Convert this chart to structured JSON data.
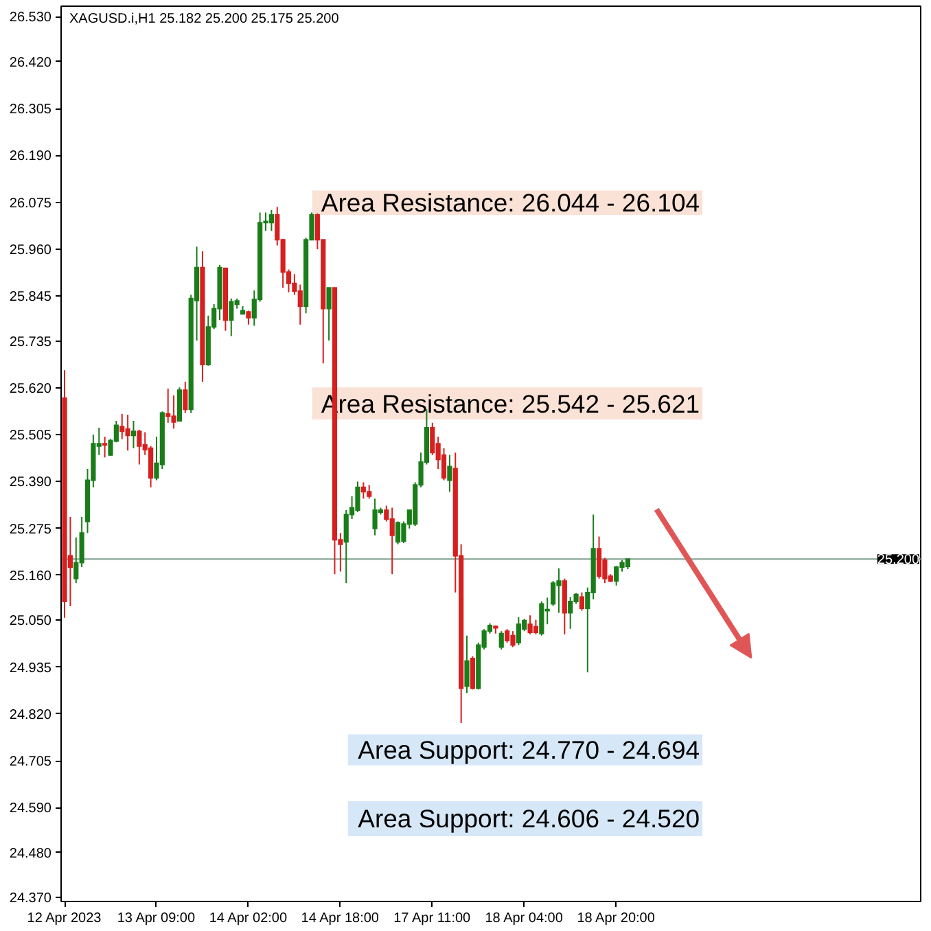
{
  "chart_data": {
    "type": "candlestick",
    "title": "XAGUSD.i,H1 25.182 25.200 25.175 25.200",
    "categories": [
      "12 Apr 2023",
      null,
      null,
      null,
      null,
      null,
      null,
      null,
      null,
      null,
      null,
      null,
      null,
      null,
      null,
      null,
      "13 Apr 09:00",
      null,
      null,
      null,
      null,
      null,
      null,
      null,
      null,
      null,
      null,
      null,
      null,
      null,
      null,
      null,
      "14 Apr 02:00",
      null,
      null,
      null,
      null,
      null,
      null,
      null,
      null,
      null,
      null,
      null,
      null,
      null,
      null,
      null,
      "14 Apr 18:00",
      null,
      null,
      null,
      null,
      null,
      null,
      null,
      null,
      null,
      null,
      null,
      null,
      null,
      null,
      null,
      "17 Apr 11:00",
      null,
      null,
      null,
      null,
      null,
      null,
      null,
      null,
      null,
      null,
      null,
      null,
      null,
      null,
      null,
      "18 Apr 04:00",
      null,
      null,
      null,
      null,
      null,
      null,
      null,
      null,
      null,
      null,
      null,
      null,
      null,
      null,
      null,
      "18 Apr 20:00",
      null,
      null
    ],
    "ohlc": [
      [
        25.595,
        25.663,
        25.056,
        25.096
      ],
      [
        25.208,
        25.303,
        25.084,
        25.18
      ],
      [
        25.152,
        25.253,
        25.141,
        25.191
      ],
      [
        25.191,
        25.303,
        25.18,
        25.264
      ],
      [
        25.292,
        25.421,
        25.264,
        25.393
      ],
      [
        25.393,
        25.505,
        25.376,
        25.483
      ],
      [
        25.477,
        25.522,
        25.455,
        25.483
      ],
      [
        25.483,
        25.5,
        25.449,
        25.48
      ],
      [
        25.455,
        25.494,
        25.453,
        25.491
      ],
      [
        25.489,
        25.539,
        25.486,
        25.528
      ],
      [
        25.525,
        25.556,
        25.494,
        25.513
      ],
      [
        25.519,
        25.554,
        25.466,
        25.503
      ],
      [
        25.503,
        25.539,
        25.472,
        25.513
      ],
      [
        25.513,
        25.517,
        25.432,
        25.477
      ],
      [
        25.48,
        25.511,
        25.455,
        25.468
      ],
      [
        25.472,
        25.477,
        25.376,
        25.399
      ],
      [
        25.399,
        25.5,
        25.393,
        25.435
      ],
      [
        25.432,
        25.562,
        25.421,
        25.558
      ],
      [
        25.556,
        25.618,
        25.534,
        25.55
      ],
      [
        25.55,
        25.601,
        25.52,
        25.536
      ],
      [
        25.539,
        25.621,
        25.537,
        25.614
      ],
      [
        25.614,
        25.635,
        25.558,
        25.567
      ],
      [
        25.567,
        25.848,
        25.558,
        25.839
      ],
      [
        25.834,
        25.966,
        25.736,
        25.915
      ],
      [
        25.915,
        25.955,
        25.635,
        25.677
      ],
      [
        25.677,
        25.797,
        25.674,
        25.769
      ],
      [
        25.769,
        25.825,
        25.764,
        25.814
      ],
      [
        25.814,
        25.921,
        25.786,
        25.915
      ],
      [
        25.913,
        25.915,
        25.76,
        25.786
      ],
      [
        25.786,
        25.839,
        25.747,
        25.831
      ],
      [
        25.825,
        25.839,
        25.814,
        25.833
      ],
      [
        25.801,
        25.82,
        25.801,
        25.809
      ],
      [
        25.806,
        25.809,
        25.775,
        25.792
      ],
      [
        25.792,
        25.859,
        25.772,
        25.837
      ],
      [
        25.837,
        26.05,
        25.831,
        26.025
      ],
      [
        26.025,
        26.05,
        26.005,
        26.028
      ],
      [
        26.025,
        26.056,
        26.005,
        26.044
      ],
      [
        26.044,
        26.064,
        25.969,
        25.983
      ],
      [
        25.983,
        25.985,
        25.865,
        25.904
      ],
      [
        25.904,
        25.91,
        25.854,
        25.876
      ],
      [
        25.876,
        25.899,
        25.848,
        25.857
      ],
      [
        25.857,
        25.873,
        25.775,
        25.82
      ],
      [
        25.82,
        25.988,
        25.803,
        25.983
      ],
      [
        25.983,
        26.05,
        25.983,
        26.044
      ],
      [
        26.044,
        26.048,
        25.96,
        25.983
      ],
      [
        25.983,
        25.983,
        25.68,
        25.814
      ],
      [
        25.814,
        25.865,
        25.736,
        25.865
      ],
      [
        25.865,
        25.865,
        25.163,
        25.247
      ],
      [
        25.247,
        25.264,
        25.169,
        25.236
      ],
      [
        25.242,
        25.32,
        25.141,
        25.309
      ],
      [
        25.309,
        25.354,
        25.298,
        25.326
      ],
      [
        25.32,
        25.39,
        25.315,
        25.376
      ],
      [
        25.376,
        25.388,
        25.348,
        25.365
      ],
      [
        25.365,
        25.382,
        25.348,
        25.354
      ],
      [
        25.275,
        25.348,
        25.258,
        25.32
      ],
      [
        25.315,
        25.326,
        25.309,
        25.32
      ],
      [
        25.32,
        25.331,
        25.292,
        25.298
      ],
      [
        25.298,
        25.326,
        25.163,
        25.258
      ],
      [
        25.242,
        25.292,
        25.236,
        25.289
      ],
      [
        25.244,
        25.292,
        25.239,
        25.286
      ],
      [
        25.286,
        25.32,
        25.275,
        25.32
      ],
      [
        25.286,
        25.388,
        25.281,
        25.382
      ],
      [
        25.382,
        25.461,
        25.376,
        25.438
      ],
      [
        25.438,
        25.567,
        25.432,
        25.522
      ],
      [
        25.522,
        25.534,
        25.455,
        25.461
      ],
      [
        25.483,
        25.5,
        25.421,
        25.444
      ],
      [
        25.455,
        25.472,
        25.393,
        25.399
      ],
      [
        25.393,
        25.455,
        25.365,
        25.427
      ],
      [
        25.422,
        25.461,
        25.118,
        25.208
      ],
      [
        25.208,
        25.236,
        24.798,
        24.883
      ],
      [
        24.888,
        25.012,
        24.871,
        24.95
      ],
      [
        24.956,
        24.961,
        24.88,
        24.883
      ],
      [
        24.883,
        24.995,
        24.88,
        24.989
      ],
      [
        24.984,
        25.028,
        24.978,
        25.023
      ],
      [
        25.023,
        25.042,
        25.017,
        25.037
      ],
      [
        25.035,
        25.037,
        25.017,
        25.031
      ],
      [
        24.984,
        25.023,
        24.978,
        25.017
      ],
      [
        25.023,
        25.028,
        24.995,
        25.0
      ],
      [
        25.012,
        25.023,
        24.984,
        24.989
      ],
      [
        24.995,
        25.057,
        24.989,
        25.04
      ],
      [
        25.028,
        25.053,
        25.023,
        25.049
      ],
      [
        25.04,
        25.062,
        25.015,
        25.02
      ],
      [
        25.034,
        25.051,
        25.015,
        25.02
      ],
      [
        25.017,
        25.096,
        25.012,
        25.09
      ],
      [
        25.073,
        25.105,
        25.04,
        25.076
      ],
      [
        25.09,
        25.146,
        25.085,
        25.141
      ],
      [
        25.135,
        25.177,
        25.068,
        25.146
      ],
      [
        25.146,
        25.152,
        25.015,
        25.068
      ],
      [
        25.068,
        25.107,
        25.029,
        25.096
      ],
      [
        25.096,
        25.116,
        25.09,
        25.113
      ],
      [
        25.107,
        25.118,
        25.073,
        25.079
      ],
      [
        25.079,
        25.13,
        24.922,
        25.118
      ],
      [
        25.118,
        25.309,
        25.101,
        25.225
      ],
      [
        25.225,
        25.255,
        25.152,
        25.158
      ],
      [
        25.197,
        25.203,
        25.141,
        25.152
      ],
      [
        25.158,
        25.163,
        25.143,
        25.146
      ],
      [
        25.146,
        25.183,
        25.135,
        25.18
      ],
      [
        25.18,
        25.197,
        25.169,
        25.191
      ],
      [
        25.182,
        25.2,
        25.175,
        25.2
      ]
    ],
    "colors": [
      "#d62020",
      "#d62020",
      "#1a7d1a",
      "#1a7d1a",
      "#1a7d1a",
      "#1a7d1a",
      "#1a7d1a",
      "#d62020",
      "#1a7d1a",
      "#1a7d1a",
      "#d62020",
      "#d62020",
      "#1a7d1a",
      "#d62020",
      "#d62020",
      "#d62020",
      "#1a7d1a",
      "#1a7d1a",
      "#d62020",
      "#d62020",
      "#1a7d1a",
      "#d62020",
      "#1a7d1a",
      "#1a7d1a",
      "#d62020",
      "#1a7d1a",
      "#1a7d1a",
      "#1a7d1a",
      "#d62020",
      "#1a7d1a",
      "#1a7d1a",
      "#1a7d1a",
      "#d62020",
      "#1a7d1a",
      "#1a7d1a",
      "#1a7d1a",
      "#1a7d1a",
      "#d62020",
      "#d62020",
      "#d62020",
      "#d62020",
      "#d62020",
      "#1a7d1a",
      "#1a7d1a",
      "#d62020",
      "#d62020",
      "#1a7d1a",
      "#d62020",
      "#d62020",
      "#1a7d1a",
      "#1a7d1a",
      "#1a7d1a",
      "#d62020",
      "#d62020",
      "#1a7d1a",
      "#1a7d1a",
      "#d62020",
      "#d62020",
      "#1a7d1a",
      "#1a7d1a",
      "#1a7d1a",
      "#1a7d1a",
      "#1a7d1a",
      "#1a7d1a",
      "#d62020",
      "#d62020",
      "#d62020",
      "#1a7d1a",
      "#d62020",
      "#d62020",
      "#1a7d1a",
      "#d62020",
      "#1a7d1a",
      "#1a7d1a",
      "#1a7d1a",
      "#d62020",
      "#1a7d1a",
      "#d62020",
      "#d62020",
      "#1a7d1a",
      "#1a7d1a",
      "#d62020",
      "#d62020",
      "#1a7d1a",
      "#1a7d1a",
      "#1a7d1a",
      "#1a7d1a",
      "#d62020",
      "#1a7d1a",
      "#1a7d1a",
      "#d62020",
      "#1a7d1a",
      "#1a7d1a",
      "#d62020",
      "#d62020",
      "#d62020",
      "#1a7d1a",
      "#1a7d1a",
      "#1a7d1a"
    ],
    "ylim": [
      24.36,
      26.556
    ],
    "yticks": [
      {
        "value": 24.37,
        "label": "24.370"
      },
      {
        "value": 24.48,
        "label": "24.480"
      },
      {
        "value": 24.59,
        "label": "24.590"
      },
      {
        "value": 24.705,
        "label": "24.705"
      },
      {
        "value": 24.82,
        "label": "24.820"
      },
      {
        "value": 24.935,
        "label": "24.935"
      },
      {
        "value": 25.05,
        "label": "25.050"
      },
      {
        "value": 25.16,
        "label": "25.160"
      },
      {
        "value": 25.275,
        "label": "25.275"
      },
      {
        "value": 25.39,
        "label": "25.390"
      },
      {
        "value": 25.505,
        "label": "25.505"
      },
      {
        "value": 25.62,
        "label": "25.620"
      },
      {
        "value": 25.735,
        "label": "25.735"
      },
      {
        "value": 25.845,
        "label": "25.845"
      },
      {
        "value": 25.96,
        "label": "25.960"
      },
      {
        "value": 26.075,
        "label": "26.075"
      },
      {
        "value": 26.19,
        "label": "26.190"
      },
      {
        "value": 26.305,
        "label": "26.305"
      },
      {
        "value": 26.42,
        "label": "26.420"
      },
      {
        "value": 26.53,
        "label": "26.530"
      }
    ],
    "ref_lines": [
      {
        "axis": "y",
        "value": 25.2,
        "label": "25.200",
        "color": "#7f9f8f"
      }
    ],
    "bands": [
      {
        "axis": "y",
        "from": 26.044,
        "to": 26.104,
        "label": "Area Resistance: 26.044 - 26.104",
        "color": "#fbe2d6"
      },
      {
        "axis": "y",
        "from": 25.542,
        "to": 25.621,
        "label": "Area Resistance: 25.542 - 25.621",
        "color": "#fbe2d6"
      },
      {
        "axis": "y",
        "from": 24.77,
        "to": 24.694,
        "label": "Area Support: 24.770 - 24.694",
        "color": "#d6e7f7"
      },
      {
        "axis": "y",
        "from": 24.606,
        "to": 24.52,
        "label": "Area Support: 24.606 - 24.520",
        "color": "#d6e7f7"
      }
    ]
  }
}
